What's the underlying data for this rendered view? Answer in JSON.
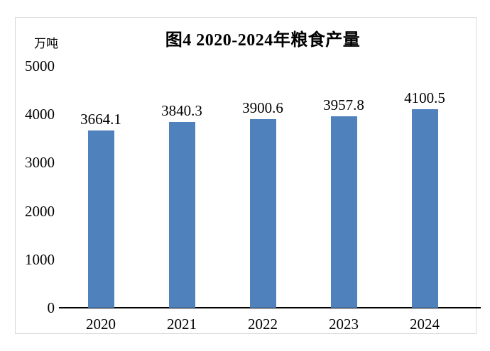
{
  "chart_data": {
    "type": "bar",
    "title": "图4 2020-2024年粮食产量",
    "unit_label": "万吨",
    "categories": [
      "2020",
      "2021",
      "2022",
      "2023",
      "2024"
    ],
    "values": [
      3664.1,
      3840.3,
      3900.6,
      3957.8,
      4100.5
    ],
    "value_labels": [
      "3664.1",
      "3840.3",
      "3900.6",
      "3957.8",
      "4100.5"
    ],
    "yticks": [
      "0",
      "1000",
      "2000",
      "3000",
      "4000",
      "5000"
    ],
    "ylim": [
      0,
      5000
    ],
    "grid": false,
    "legend": "none",
    "colors": {
      "bar": "#4F81BD",
      "axis": "#000000",
      "text": "#000000",
      "frame_border": "#D9D9D9",
      "background": "#FFFFFF"
    }
  }
}
